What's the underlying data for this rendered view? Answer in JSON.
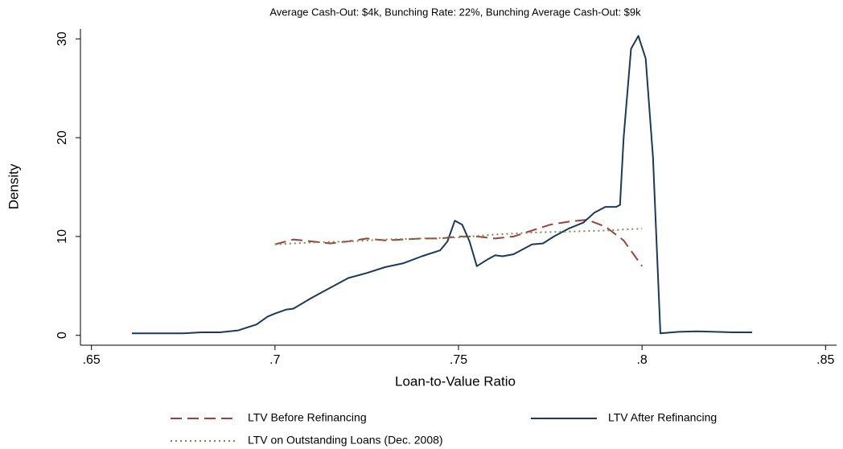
{
  "chart_data": {
    "type": "line",
    "title": "Average Cash-Out: $4k, Bunching Rate: 22%, Bunching Average Cash-Out: $9k",
    "xlabel": "Loan-to-Value Ratio",
    "ylabel": "Density",
    "xlim": [
      0.647,
      0.853
    ],
    "ylim": [
      -1,
      31
    ],
    "xticks": [
      {
        "value": 0.65,
        "label": ".65"
      },
      {
        "value": 0.7,
        "label": ".7"
      },
      {
        "value": 0.75,
        "label": ".75"
      },
      {
        "value": 0.8,
        "label": ".8"
      },
      {
        "value": 0.85,
        "label": ".85"
      }
    ],
    "yticks": [
      0,
      10,
      20,
      30
    ],
    "grid": false,
    "series": [
      {
        "name": "LTV Before Refinancing",
        "color": "#a0403c",
        "style": "dashed",
        "x": [
          0.7,
          0.705,
          0.71,
          0.715,
          0.72,
          0.725,
          0.73,
          0.735,
          0.74,
          0.745,
          0.75,
          0.755,
          0.76,
          0.765,
          0.77,
          0.775,
          0.78,
          0.785,
          0.79,
          0.795,
          0.8
        ],
        "values": [
          9.2,
          9.7,
          9.5,
          9.3,
          9.5,
          9.8,
          9.6,
          9.7,
          9.8,
          9.8,
          10.0,
          10.0,
          9.8,
          10.0,
          10.6,
          11.2,
          11.5,
          11.7,
          11.0,
          9.6,
          7.0
        ]
      },
      {
        "name": "LTV After Refinancing",
        "color": "#1a3a5c",
        "style": "solid",
        "x": [
          0.661,
          0.665,
          0.67,
          0.675,
          0.68,
          0.685,
          0.69,
          0.695,
          0.698,
          0.7,
          0.703,
          0.705,
          0.71,
          0.715,
          0.72,
          0.725,
          0.73,
          0.735,
          0.74,
          0.745,
          0.747,
          0.749,
          0.751,
          0.753,
          0.755,
          0.758,
          0.76,
          0.762,
          0.765,
          0.77,
          0.773,
          0.776,
          0.78,
          0.784,
          0.787,
          0.79,
          0.793,
          0.794,
          0.795,
          0.797,
          0.799,
          0.801,
          0.803,
          0.805,
          0.81,
          0.815,
          0.82,
          0.825,
          0.83
        ],
        "values": [
          0.2,
          0.2,
          0.2,
          0.2,
          0.3,
          0.3,
          0.5,
          1.1,
          1.9,
          2.2,
          2.6,
          2.7,
          3.8,
          4.8,
          5.8,
          6.3,
          6.9,
          7.3,
          8.0,
          8.6,
          9.5,
          11.6,
          11.2,
          9.5,
          7.0,
          7.7,
          8.1,
          8.0,
          8.2,
          9.2,
          9.3,
          10.0,
          10.8,
          11.4,
          12.4,
          13.0,
          13.0,
          13.2,
          20,
          29,
          30.3,
          28,
          18,
          0.2,
          0.35,
          0.4,
          0.35,
          0.3,
          0.3
        ]
      },
      {
        "name": "LTV on Outstanding Loans (Dec. 2008)",
        "color": "#7a8a4a",
        "style": "dotted",
        "x": [
          0.7,
          0.71,
          0.72,
          0.73,
          0.74,
          0.75,
          0.76,
          0.77,
          0.78,
          0.79,
          0.8
        ],
        "values": [
          9.2,
          9.4,
          9.5,
          9.7,
          9.8,
          9.9,
          10.2,
          10.4,
          10.5,
          10.6,
          10.8
        ]
      }
    ]
  }
}
